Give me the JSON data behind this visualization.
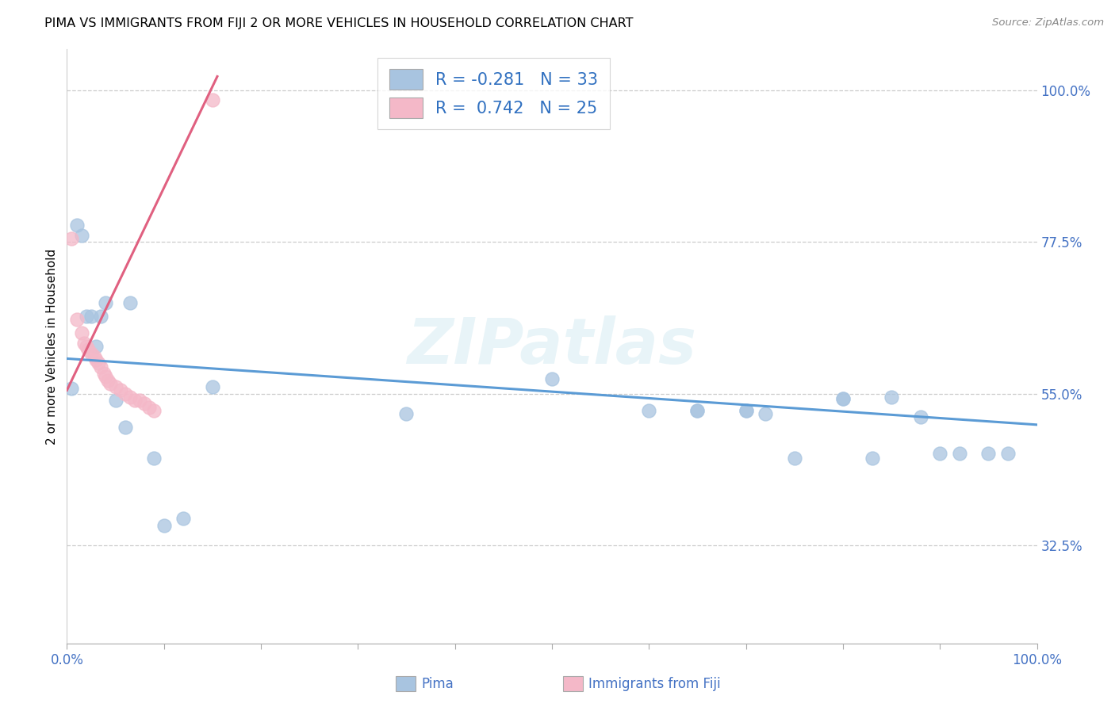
{
  "title": "PIMA VS IMMIGRANTS FROM FIJI 2 OR MORE VEHICLES IN HOUSEHOLD CORRELATION CHART",
  "source": "Source: ZipAtlas.com",
  "ylabel": "2 or more Vehicles in Household",
  "background_color": "#ffffff",
  "grid_color": "#cccccc",
  "watermark": "ZIPatlas",
  "pima_color": "#a8c4e0",
  "fiji_color": "#f4b8c8",
  "pima_line_color": "#5b9bd5",
  "fiji_line_color": "#e06080",
  "pima_R": -0.281,
  "pima_N": 33,
  "fiji_R": 0.742,
  "fiji_N": 25,
  "legend_text_color": "#3070c0",
  "axis_text_color": "#4472c4",
  "ytick_positions": [
    0.325,
    0.55,
    0.775,
    1.0
  ],
  "ytick_labels": [
    "32.5%",
    "55.0%",
    "77.5%",
    "100.0%"
  ],
  "ymin": 0.18,
  "ymax": 1.06,
  "xmin": 0.0,
  "xmax": 1.0,
  "pima_x": [
    0.005,
    0.01,
    0.015,
    0.02,
    0.025,
    0.03,
    0.035,
    0.04,
    0.05,
    0.06,
    0.065,
    0.09,
    0.1,
    0.12,
    0.15,
    0.35,
    0.5,
    0.6,
    0.65,
    0.7,
    0.72,
    0.75,
    0.8,
    0.83,
    0.85,
    0.88,
    0.9,
    0.92,
    0.95,
    0.97,
    0.65,
    0.7,
    0.8
  ],
  "pima_y": [
    0.558,
    0.8,
    0.785,
    0.665,
    0.665,
    0.62,
    0.665,
    0.685,
    0.54,
    0.5,
    0.685,
    0.455,
    0.355,
    0.365,
    0.56,
    0.52,
    0.572,
    0.525,
    0.525,
    0.525,
    0.52,
    0.455,
    0.543,
    0.455,
    0.545,
    0.515,
    0.462,
    0.462,
    0.462,
    0.462,
    0.525,
    0.525,
    0.543
  ],
  "fiji_x": [
    0.005,
    0.01,
    0.015,
    0.018,
    0.02,
    0.022,
    0.025,
    0.028,
    0.03,
    0.032,
    0.035,
    0.038,
    0.04,
    0.042,
    0.045,
    0.05,
    0.055,
    0.06,
    0.065,
    0.07,
    0.075,
    0.08,
    0.085,
    0.09,
    0.15
  ],
  "fiji_y": [
    0.78,
    0.66,
    0.64,
    0.625,
    0.62,
    0.615,
    0.61,
    0.605,
    0.6,
    0.595,
    0.59,
    0.58,
    0.575,
    0.57,
    0.565,
    0.56,
    0.555,
    0.55,
    0.545,
    0.54,
    0.54,
    0.535,
    0.53,
    0.525,
    0.985
  ],
  "pima_line_x0": 0.0,
  "pima_line_x1": 1.0,
  "pima_line_y0": 0.602,
  "pima_line_y1": 0.504,
  "fiji_line_x0": 0.0,
  "fiji_line_x1": 0.155,
  "fiji_line_y0": 0.555,
  "fiji_line_y1": 1.02
}
